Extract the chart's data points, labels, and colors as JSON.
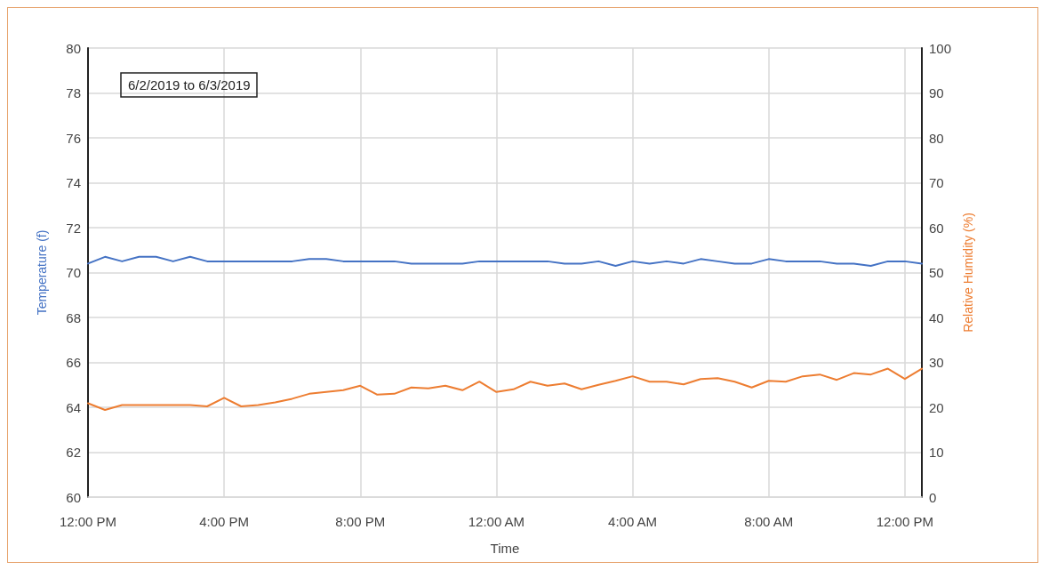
{
  "chart_data": {
    "type": "line",
    "xlabel": "Time",
    "ylabel": "Temperature (f)",
    "y2label": "Relative Humidity (%)",
    "annotations": [
      "6/2/2019 to 6/3/2019"
    ],
    "x": [
      "2019-06-02T12:00",
      "2019-06-02T12:30",
      "2019-06-02T13:00",
      "2019-06-02T13:30",
      "2019-06-02T14:00",
      "2019-06-02T14:30",
      "2019-06-02T15:00",
      "2019-06-02T15:30",
      "2019-06-02T16:00",
      "2019-06-02T16:30",
      "2019-06-02T17:00",
      "2019-06-02T17:30",
      "2019-06-02T18:00",
      "2019-06-02T18:30",
      "2019-06-02T19:00",
      "2019-06-02T19:30",
      "2019-06-02T20:00",
      "2019-06-02T20:30",
      "2019-06-02T21:00",
      "2019-06-02T21:30",
      "2019-06-02T22:00",
      "2019-06-02T22:30",
      "2019-06-02T23:00",
      "2019-06-02T23:30",
      "2019-06-03T00:00",
      "2019-06-03T00:30",
      "2019-06-03T01:00",
      "2019-06-03T01:30",
      "2019-06-03T02:00",
      "2019-06-03T02:30",
      "2019-06-03T03:00",
      "2019-06-03T03:30",
      "2019-06-03T04:00",
      "2019-06-03T04:30",
      "2019-06-03T05:00",
      "2019-06-03T05:30",
      "2019-06-03T06:00",
      "2019-06-03T06:30",
      "2019-06-03T07:00",
      "2019-06-03T07:30",
      "2019-06-03T08:00",
      "2019-06-03T08:30",
      "2019-06-03T09:00",
      "2019-06-03T09:30",
      "2019-06-03T10:00",
      "2019-06-03T10:30",
      "2019-06-03T11:00",
      "2019-06-03T11:30",
      "2019-06-03T12:00",
      "2019-06-03T12:30"
    ],
    "series": [
      {
        "color": "#4472c4",
        "values": [
          70.4,
          70.7,
          70.5,
          70.7,
          70.7,
          70.5,
          70.7,
          70.5,
          70.5,
          70.5,
          70.5,
          70.5,
          70.5,
          70.6,
          70.6,
          70.5,
          70.5,
          70.5,
          70.5,
          70.4,
          70.4,
          70.4,
          70.4,
          70.5,
          70.5,
          70.5,
          70.5,
          70.5,
          70.4,
          70.4,
          70.5,
          70.3,
          70.5,
          70.4,
          70.5,
          70.4,
          70.6,
          70.5,
          70.4,
          70.4,
          70.6,
          70.5,
          70.5,
          70.5,
          70.4,
          70.4,
          70.3,
          70.5,
          70.5,
          70.4
        ]
      },
      {
        "color": "#ed7d31",
        "axis": "y2",
        "values": [
          20.9,
          19.4,
          20.5,
          20.5,
          20.5,
          20.5,
          20.5,
          20.2,
          22.1,
          20.2,
          20.5,
          21.1,
          21.9,
          23.0,
          23.4,
          23.8,
          24.8,
          22.8,
          23.0,
          24.4,
          24.2,
          24.8,
          23.8,
          25.7,
          23.4,
          24.0,
          25.7,
          24.8,
          25.3,
          24.0,
          25.0,
          25.9,
          26.9,
          25.7,
          25.7,
          25.1,
          26.3,
          26.5,
          25.7,
          24.4,
          25.9,
          25.7,
          26.9,
          27.3,
          26.1,
          27.6,
          27.3,
          28.6,
          26.3,
          28.6
        ]
      }
    ],
    "xlim": [
      "2019-06-02T12:00",
      "2019-06-03T12:30"
    ],
    "xticks": [
      {
        "value": "2019-06-02T12:00",
        "label": "12:00 PM"
      },
      {
        "value": "2019-06-02T16:00",
        "label": "4:00 PM"
      },
      {
        "value": "2019-06-02T20:00",
        "label": "8:00 PM"
      },
      {
        "value": "2019-06-03T00:00",
        "label": "12:00 AM"
      },
      {
        "value": "2019-06-03T04:00",
        "label": "4:00 AM"
      },
      {
        "value": "2019-06-03T08:00",
        "label": "8:00 AM"
      },
      {
        "value": "2019-06-03T12:00",
        "label": "12:00 PM"
      }
    ],
    "ylim": [
      60,
      80
    ],
    "yticks": [
      60,
      62,
      64,
      66,
      68,
      70,
      72,
      74,
      76,
      78,
      80
    ],
    "y2lim": [
      0,
      100
    ],
    "y2ticks": [
      0,
      10,
      20,
      30,
      40,
      50,
      60,
      70,
      80,
      90,
      100
    ],
    "grid": true,
    "marker": "none",
    "line_style": "solid"
  }
}
